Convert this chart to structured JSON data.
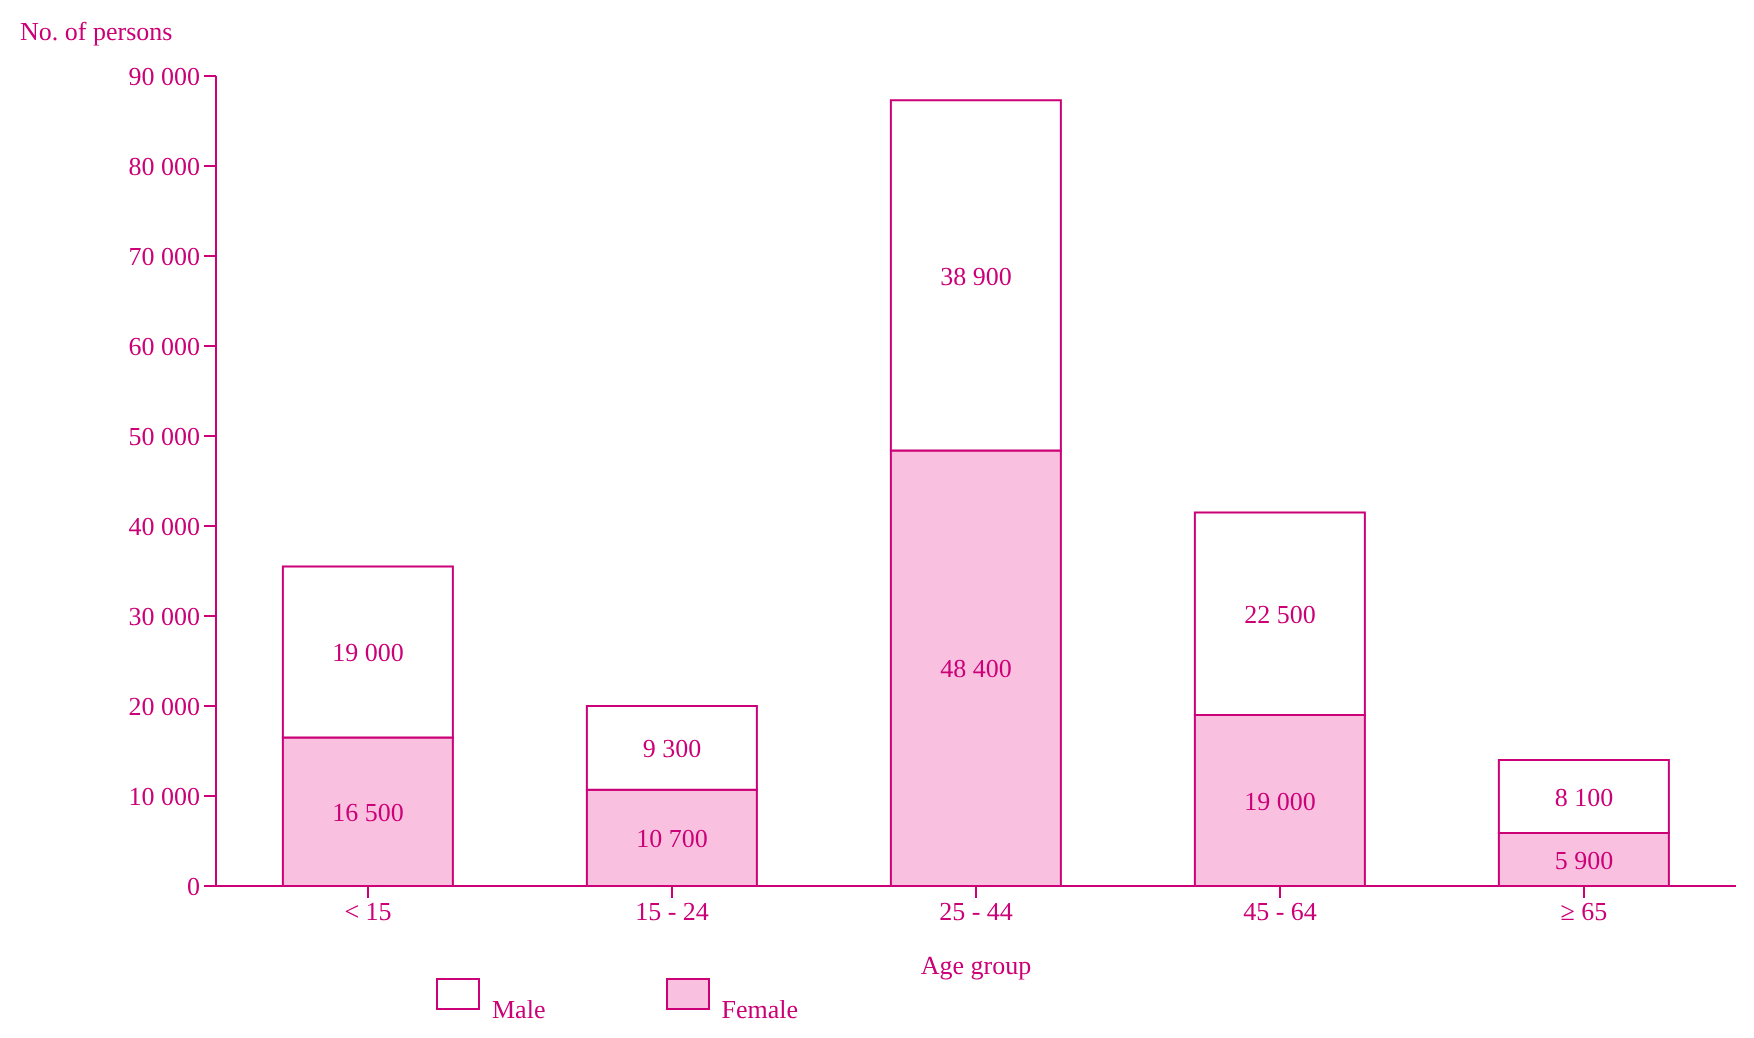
{
  "chart_data": {
    "type": "bar",
    "stacked": true,
    "ylabel": "No. of persons",
    "xlabel": "Age group",
    "categories": [
      "< 15",
      "15 - 24",
      "25 - 44",
      "45 - 64",
      "≥ 65"
    ],
    "series": [
      {
        "name": "Female",
        "color": "#f9c0e0",
        "values": [
          16500,
          10700,
          48400,
          19000,
          5900
        ]
      },
      {
        "name": "Male",
        "color": "#ffffff",
        "values": [
          19000,
          9300,
          38900,
          22500,
          8100
        ]
      }
    ],
    "ylim": [
      0,
      90000
    ],
    "yticks": [
      {
        "value": 0,
        "label": "0"
      },
      {
        "value": 10000,
        "label": "10 000"
      },
      {
        "value": 20000,
        "label": "20 000"
      },
      {
        "value": 30000,
        "label": "30 000"
      },
      {
        "value": 40000,
        "label": "40 000"
      },
      {
        "value": 50000,
        "label": "50 000"
      },
      {
        "value": 60000,
        "label": "60 000"
      },
      {
        "value": 70000,
        "label": "70 000"
      },
      {
        "value": 80000,
        "label": "80 000"
      },
      {
        "value": 90000,
        "label": "90 000"
      }
    ],
    "data_labels": true,
    "grid": false,
    "legend": "bottom"
  }
}
